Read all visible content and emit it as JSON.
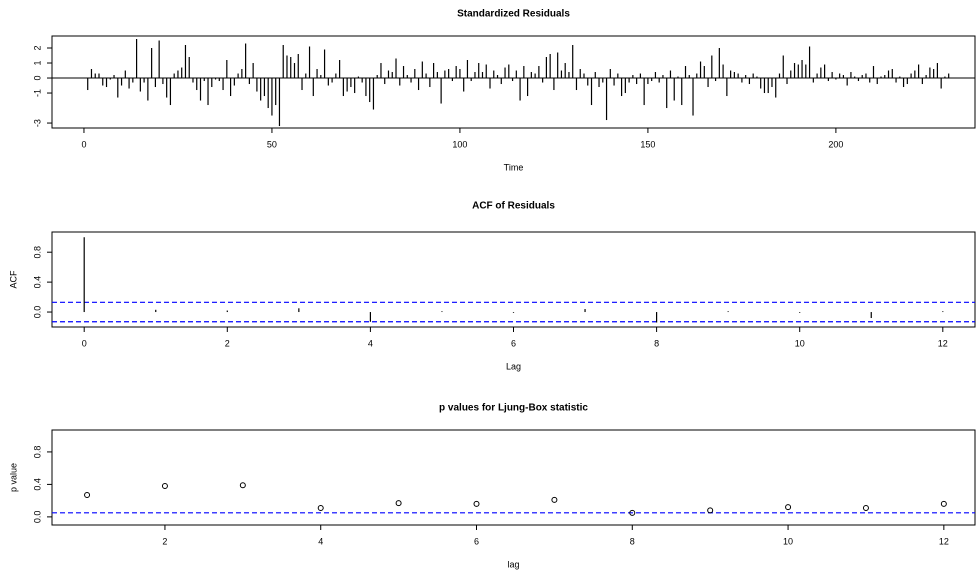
{
  "chart_data": [
    {
      "type": "stem",
      "title": "Standardized Residuals",
      "xlabel": "Time",
      "color": "#000000",
      "x": [
        1,
        2,
        3,
        4,
        5,
        6,
        7,
        8,
        9,
        10,
        11,
        12,
        13,
        14,
        15,
        16,
        17,
        18,
        19,
        20,
        21,
        22,
        23,
        24,
        25,
        26,
        27,
        28,
        29,
        30,
        31,
        32,
        33,
        34,
        35,
        36,
        37,
        38,
        39,
        40,
        41,
        42,
        43,
        44,
        45,
        46,
        47,
        48,
        49,
        50,
        51,
        52,
        53,
        54,
        55,
        56,
        57,
        58,
        59,
        60,
        61,
        62,
        63,
        64,
        65,
        66,
        67,
        68,
        69,
        70,
        71,
        72,
        73,
        74,
        75,
        76,
        77,
        78,
        79,
        80,
        81,
        82,
        83,
        84,
        85,
        86,
        87,
        88,
        89,
        90,
        91,
        92,
        93,
        94,
        95,
        96,
        97,
        98,
        99,
        100,
        101,
        102,
        103,
        104,
        105,
        106,
        107,
        108,
        109,
        110,
        111,
        112,
        113,
        114,
        115,
        116,
        117,
        118,
        119,
        120,
        121,
        122,
        123,
        124,
        125,
        126,
        127,
        128,
        129,
        130,
        131,
        132,
        133,
        134,
        135,
        136,
        137,
        138,
        139,
        140,
        141,
        142,
        143,
        144,
        145,
        146,
        147,
        148,
        149,
        150,
        151,
        152,
        153,
        154,
        155,
        156,
        157,
        158,
        159,
        160,
        161,
        162,
        163,
        164,
        165,
        166,
        167,
        168,
        169,
        170,
        171,
        172,
        173,
        174,
        175,
        176,
        177,
        178,
        179,
        180,
        181,
        182,
        183,
        184,
        185,
        186,
        187,
        188,
        189,
        190,
        191,
        192,
        193,
        194,
        195,
        196,
        197,
        198,
        199,
        200,
        201,
        202,
        203,
        204,
        205,
        206,
        207,
        208,
        209,
        210,
        211,
        212,
        213,
        214,
        215,
        216,
        217,
        218,
        219,
        220,
        221,
        222,
        223,
        224,
        225,
        226,
        227,
        228,
        229,
        230
      ],
      "values": [
        -0.8,
        0.6,
        0.3,
        0.3,
        -0.5,
        -0.6,
        -0.1,
        0.2,
        -1.3,
        -0.5,
        0.5,
        -0.7,
        -0.3,
        2.6,
        -0.9,
        -0.3,
        -1.5,
        2.0,
        -0.6,
        2.5,
        -0.4,
        -1.3,
        -1.8,
        0.3,
        0.5,
        0.7,
        2.2,
        1.4,
        -0.3,
        -0.8,
        -1.5,
        -0.2,
        -1.8,
        -0.6,
        -0.1,
        -0.2,
        -0.8,
        1.2,
        -1.2,
        -0.5,
        0.3,
        0.6,
        2.3,
        -0.4,
        1.0,
        -0.9,
        -1.5,
        -1.2,
        -2.0,
        -2.5,
        -1.8,
        -3.2,
        2.2,
        1.5,
        1.4,
        1.0,
        1.6,
        -0.8,
        0.3,
        2.1,
        -1.2,
        0.6,
        0.2,
        1.9,
        -0.5,
        -0.3,
        0.3,
        1.2,
        -1.2,
        -0.9,
        -0.6,
        -1.0,
        0.1,
        -0.3,
        -1.2,
        -1.6,
        -2.1,
        0.2,
        1.0,
        -0.4,
        0.5,
        0.4,
        1.3,
        -0.5,
        0.8,
        0.2,
        -0.3,
        0.6,
        -0.8,
        1.1,
        0.3,
        -0.6,
        1.0,
        0.4,
        -1.7,
        0.5,
        0.6,
        -0.2,
        0.8,
        0.6,
        -0.9,
        1.2,
        -0.2,
        0.4,
        1.0,
        0.4,
        0.9,
        -0.7,
        0.5,
        0.2,
        -0.4,
        0.7,
        0.9,
        -0.2,
        0.5,
        -1.5,
        0.8,
        -1.2,
        0.4,
        0.3,
        0.8,
        -0.3,
        1.4,
        1.6,
        -0.8,
        1.7,
        0.5,
        1.0,
        0.4,
        2.2,
        -0.8,
        0.6,
        0.3,
        -0.5,
        -1.8,
        0.4,
        -0.6,
        -0.3,
        -2.8,
        0.6,
        -0.5,
        0.3,
        -1.2,
        -1.0,
        -0.3,
        0.2,
        -0.4,
        0.3,
        -1.8,
        -0.4,
        -0.2,
        0.4,
        -0.3,
        0.2,
        -2.0,
        0.5,
        -1.5,
        0.1,
        -1.8,
        0.8,
        0.2,
        -2.5,
        0.3,
        1.1,
        0.8,
        -0.6,
        1.5,
        -0.2,
        2.0,
        0.9,
        -1.2,
        0.5,
        0.4,
        0.3,
        -0.3,
        0.2,
        -0.4,
        0.3,
        0.1,
        -0.7,
        -1.0,
        -1.0,
        -0.6,
        -1.3,
        0.3,
        1.5,
        -0.4,
        0.5,
        1.0,
        0.9,
        1.2,
        0.9,
        2.1,
        -0.3,
        0.3,
        0.7,
        0.9,
        -0.2,
        0.4,
        -0.1,
        0.3,
        0.2,
        -0.5,
        0.4,
        0.1,
        -0.2,
        0.2,
        0.3,
        -0.3,
        0.8,
        -0.4,
        0.1,
        0.2,
        0.5,
        0.6,
        -0.3,
        0.1,
        -0.6,
        -0.4,
        0.3,
        0.5,
        0.9,
        -0.4,
        0.2,
        0.7,
        0.6,
        1.0,
        -0.7,
        0.1,
        0.3
      ],
      "xlim": [
        -8.5,
        237
      ],
      "ylim": [
        -3.33,
        2.8
      ],
      "xticks": [
        0,
        50,
        100,
        150,
        200
      ],
      "yticks": [
        -3,
        -1,
        0,
        1,
        2
      ],
      "hlines": [
        0
      ],
      "hline_color": "#000000"
    },
    {
      "type": "stem",
      "title": "ACF of Residuals",
      "xlabel": "Lag",
      "ylabel": "ACF",
      "color": "#000000",
      "x": [
        0,
        1,
        2,
        3,
        4,
        5,
        6,
        7,
        8,
        9,
        10,
        11,
        12
      ],
      "values": [
        1.0,
        0.03,
        0.02,
        0.05,
        -0.13,
        0.01,
        -0.01,
        0.04,
        -0.14,
        0.01,
        -0.01,
        -0.08,
        0.01
      ],
      "xlim": [
        -0.45,
        12.45
      ],
      "ylim": [
        -0.2,
        1.07
      ],
      "xticks": [
        0,
        2,
        4,
        6,
        8,
        10,
        12
      ],
      "yticks": [
        {
          "value": 0,
          "label": "0.0"
        },
        0.4,
        0.8
      ],
      "hlines": [
        0.13,
        -0.13
      ],
      "hline_color": "#0000ff"
    },
    {
      "type": "scatter",
      "title": "p values for Ljung-Box statistic",
      "xlabel": "lag",
      "ylabel": "p value",
      "color": "#000000",
      "x": [
        1,
        2,
        3,
        4,
        5,
        6,
        7,
        8,
        9,
        10,
        11,
        12
      ],
      "values": [
        0.27,
        0.38,
        0.39,
        0.11,
        0.17,
        0.16,
        0.21,
        0.05,
        0.08,
        0.12,
        0.11,
        0.16
      ],
      "xlim": [
        0.55,
        12.4
      ],
      "ylim": [
        -0.1,
        1.07
      ],
      "xticks": [
        2,
        4,
        6,
        8,
        10,
        12
      ],
      "yticks": [
        {
          "value": 0,
          "label": "0.0"
        },
        0.4,
        0.8
      ],
      "hlines": [
        0.05
      ],
      "hline_color": "#0000ff"
    }
  ]
}
